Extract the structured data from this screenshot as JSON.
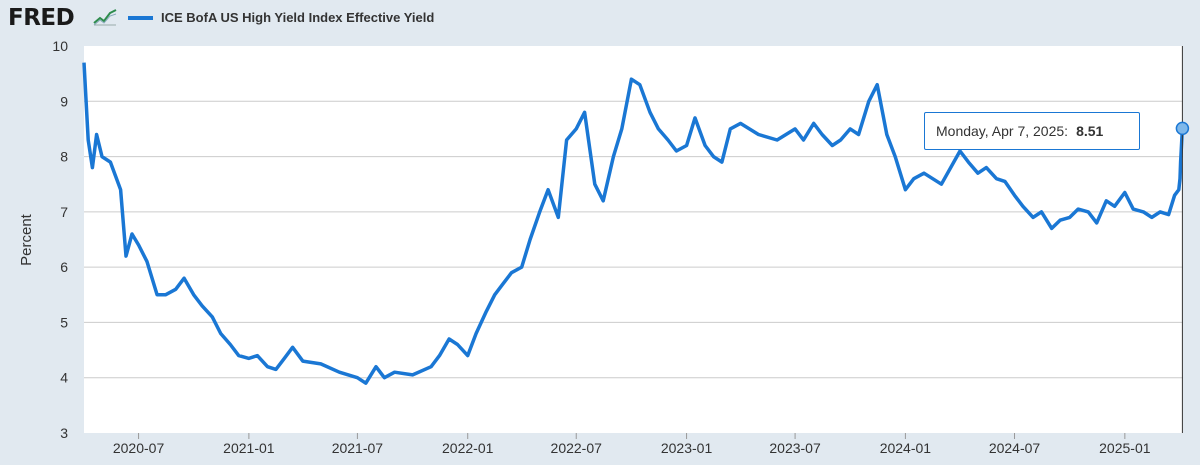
{
  "brand": {
    "logo_text": "FRED",
    "logo_icon": "chart-line-icon"
  },
  "legend": {
    "series_name": "ICE BofA US High Yield Index Effective Yield",
    "color": "#1a77d4"
  },
  "colors": {
    "background": "#e1e9f0",
    "plot_background": "#ffffff",
    "line": "#1a77d4",
    "grid": "#cccccc"
  },
  "chart_data": {
    "type": "line",
    "title": "",
    "xlabel": "",
    "ylabel": "Percent",
    "ylim": [
      3,
      10
    ],
    "yticks": [
      3,
      4,
      5,
      6,
      7,
      8,
      9,
      10
    ],
    "xlim": [
      "2020-04-01",
      "2025-04-08"
    ],
    "xticks": [
      "2020-07",
      "2021-01",
      "2021-07",
      "2022-01",
      "2022-07",
      "2023-01",
      "2023-07",
      "2024-01",
      "2024-07",
      "2025-01"
    ],
    "grid": true,
    "legend_position": "top",
    "series": [
      {
        "name": "ICE BofA US High Yield Index Effective Yield",
        "x": [
          "2020-04-01",
          "2020-04-08",
          "2020-04-15",
          "2020-04-22",
          "2020-05-01",
          "2020-05-15",
          "2020-06-01",
          "2020-06-10",
          "2020-06-20",
          "2020-07-01",
          "2020-07-15",
          "2020-08-01",
          "2020-08-15",
          "2020-09-01",
          "2020-09-15",
          "2020-10-01",
          "2020-10-15",
          "2020-11-01",
          "2020-11-15",
          "2020-12-01",
          "2020-12-15",
          "2021-01-01",
          "2021-01-15",
          "2021-02-01",
          "2021-02-15",
          "2021-03-01",
          "2021-03-15",
          "2021-04-01",
          "2021-05-01",
          "2021-06-01",
          "2021-07-01",
          "2021-07-15",
          "2021-08-01",
          "2021-08-15",
          "2021-09-01",
          "2021-10-01",
          "2021-11-01",
          "2021-11-15",
          "2021-12-01",
          "2021-12-15",
          "2022-01-01",
          "2022-01-15",
          "2022-02-01",
          "2022-02-15",
          "2022-03-01",
          "2022-03-15",
          "2022-04-01",
          "2022-04-15",
          "2022-05-01",
          "2022-05-15",
          "2022-06-01",
          "2022-06-15",
          "2022-07-01",
          "2022-07-15",
          "2022-08-01",
          "2022-08-15",
          "2022-09-01",
          "2022-09-15",
          "2022-10-01",
          "2022-10-15",
          "2022-11-01",
          "2022-11-15",
          "2022-12-01",
          "2022-12-15",
          "2023-01-01",
          "2023-01-15",
          "2023-02-01",
          "2023-02-15",
          "2023-03-01",
          "2023-03-15",
          "2023-04-01",
          "2023-05-01",
          "2023-06-01",
          "2023-07-01",
          "2023-07-15",
          "2023-08-01",
          "2023-08-15",
          "2023-09-01",
          "2023-09-15",
          "2023-10-01",
          "2023-10-15",
          "2023-11-01",
          "2023-11-15",
          "2023-12-01",
          "2023-12-15",
          "2024-01-01",
          "2024-01-15",
          "2024-02-01",
          "2024-03-01",
          "2024-04-01",
          "2024-04-15",
          "2024-05-01",
          "2024-05-15",
          "2024-06-01",
          "2024-06-15",
          "2024-07-01",
          "2024-07-15",
          "2024-08-01",
          "2024-08-15",
          "2024-09-01",
          "2024-09-15",
          "2024-10-01",
          "2024-10-15",
          "2024-11-01",
          "2024-11-15",
          "2024-12-01",
          "2024-12-15",
          "2025-01-01",
          "2025-01-15",
          "2025-02-01",
          "2025-02-15",
          "2025-03-01",
          "2025-03-15",
          "2025-03-25",
          "2025-04-01",
          "2025-04-03",
          "2025-04-04",
          "2025-04-07"
        ],
        "values": [
          9.7,
          8.3,
          7.8,
          8.4,
          8.0,
          7.9,
          7.4,
          6.2,
          6.6,
          6.4,
          6.1,
          5.5,
          5.5,
          5.6,
          5.8,
          5.5,
          5.3,
          5.1,
          4.8,
          4.6,
          4.4,
          4.35,
          4.4,
          4.2,
          4.15,
          4.35,
          4.55,
          4.3,
          4.25,
          4.1,
          4.0,
          3.9,
          4.2,
          4.0,
          4.1,
          4.05,
          4.2,
          4.4,
          4.7,
          4.6,
          4.4,
          4.8,
          5.2,
          5.5,
          5.7,
          5.9,
          6.0,
          6.5,
          7.0,
          7.4,
          6.9,
          8.3,
          8.5,
          8.8,
          7.5,
          7.2,
          8.0,
          8.5,
          9.4,
          9.3,
          8.8,
          8.5,
          8.3,
          8.1,
          8.2,
          8.7,
          8.2,
          8.0,
          7.9,
          8.5,
          8.6,
          8.4,
          8.3,
          8.5,
          8.3,
          8.6,
          8.4,
          8.2,
          8.3,
          8.5,
          8.4,
          9.0,
          9.3,
          8.4,
          8.0,
          7.4,
          7.6,
          7.7,
          7.5,
          8.1,
          7.9,
          7.7,
          7.8,
          7.6,
          7.55,
          7.3,
          7.1,
          6.9,
          7.0,
          6.7,
          6.85,
          6.9,
          7.05,
          7.0,
          6.8,
          7.2,
          7.1,
          7.35,
          7.05,
          7.0,
          6.9,
          7.0,
          6.95,
          7.3,
          7.4,
          7.6,
          7.9,
          8.51
        ]
      }
    ],
    "annotations": [
      {
        "date_label": "Monday, Apr 7, 2025:",
        "value_label": "8.51",
        "x": "2025-04-07",
        "y": 8.51
      }
    ]
  }
}
